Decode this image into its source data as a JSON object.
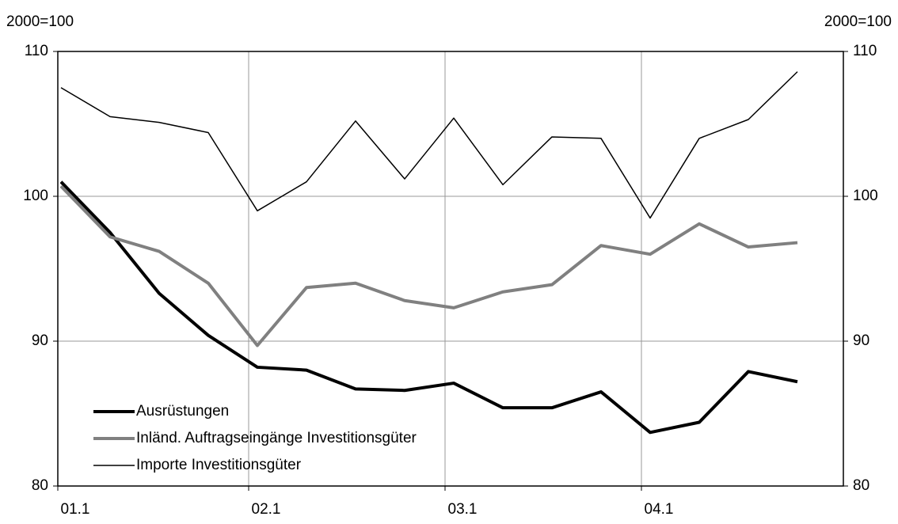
{
  "chart_data": {
    "type": "line",
    "y_label_left": "2000=100",
    "y_label_right": "2000=100",
    "categories": [
      "01.1",
      null,
      null,
      null,
      "02.1",
      null,
      null,
      null,
      "03.1",
      null,
      null,
      null,
      "04.1",
      null,
      null,
      null
    ],
    "series": [
      {
        "name": "Ausrüstungen",
        "color": "#000000",
        "width": 4,
        "values": [
          101,
          97.5,
          93.3,
          90.4,
          88.2,
          88,
          86.7,
          86.6,
          87.1,
          85.4,
          85.4,
          86.5,
          83.7,
          84.4,
          87.9,
          87.2
        ]
      },
      {
        "name": "Inländ. Auftragseingänge Investitionsgüter",
        "color": "#808080",
        "width": 4,
        "values": [
          100.7,
          97.2,
          96.2,
          94,
          89.7,
          93.7,
          94,
          92.8,
          92.3,
          93.4,
          93.9,
          96.6,
          96,
          98.1,
          96.5,
          96.8
        ]
      },
      {
        "name": "Importe Investitionsgüter",
        "color": "#000000",
        "width": 1.5,
        "values": [
          107.5,
          105.5,
          105.1,
          104.4,
          99,
          101,
          105.2,
          101.2,
          105.4,
          100.8,
          104.1,
          104,
          98.5,
          104,
          105.3,
          108.6
        ]
      }
    ],
    "ylim": [
      80,
      110
    ],
    "yticks": [
      80,
      90,
      100,
      110
    ],
    "y2lim": [
      80,
      110
    ],
    "y2ticks": [
      80,
      90,
      100,
      110
    ],
    "grid": true,
    "legend": "lower left"
  }
}
